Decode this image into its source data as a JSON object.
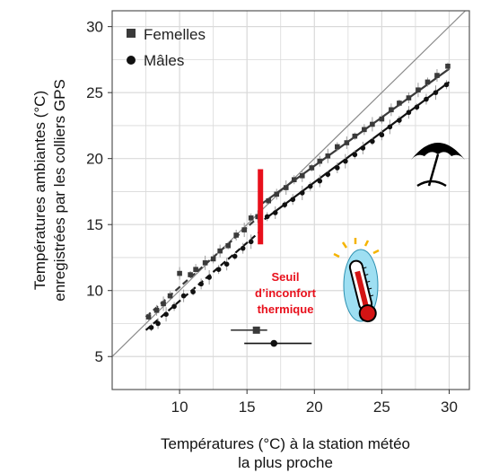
{
  "colors": {
    "femelles": "#3a3a3a",
    "males": "#111111",
    "threshold": "#e8101c",
    "identity": "#8a8a8a",
    "grid": "#d9d9d9",
    "panel_border": "#555555"
  },
  "icons": [
    "parasol-icon",
    "thermometer-icon"
  ],
  "chart_data": {
    "type": "scatter",
    "xlabel_lines": [
      "Températures (°C) à la station météo",
      "la plus proche"
    ],
    "ylabel_lines": [
      "Températures ambiantes (°C)",
      "enregistrées par les colliers GPS"
    ],
    "xlim": [
      5,
      31.5
    ],
    "ylim": [
      2.5,
      31.2
    ],
    "xticks": [
      10,
      15,
      20,
      25,
      30
    ],
    "yticks": [
      5,
      10,
      15,
      20,
      25,
      30
    ],
    "x_tick_labels": [
      "10",
      "15",
      "20",
      "25",
      "30"
    ],
    "y_tick_labels": [
      "5",
      "10",
      "15",
      "20",
      "25",
      "30"
    ],
    "grid": true,
    "legend_position": "top-left",
    "identity_line": true,
    "series": [
      {
        "name": "Femelles",
        "marker": "square",
        "fit_below_threshold": {
          "x": [
            7.5,
            16.0
          ],
          "y": [
            8.0,
            15.7
          ],
          "style": "dashed"
        },
        "fit_above_threshold": {
          "x": [
            16.0,
            30.0
          ],
          "y": [
            16.5,
            26.8
          ],
          "style": "solid"
        },
        "points": [
          {
            "x": 7.7,
            "y": 8.0
          },
          {
            "x": 8.3,
            "y": 8.5
          },
          {
            "x": 8.8,
            "y": 9.0
          },
          {
            "x": 9.3,
            "y": 9.6
          },
          {
            "x": 10.0,
            "y": 11.3
          },
          {
            "x": 10.8,
            "y": 11.2
          },
          {
            "x": 11.2,
            "y": 11.6
          },
          {
            "x": 11.9,
            "y": 12.1
          },
          {
            "x": 12.5,
            "y": 12.4
          },
          {
            "x": 13.0,
            "y": 13.0
          },
          {
            "x": 13.6,
            "y": 13.4
          },
          {
            "x": 14.2,
            "y": 14.2
          },
          {
            "x": 14.8,
            "y": 14.6
          },
          {
            "x": 15.3,
            "y": 15.5
          },
          {
            "x": 15.8,
            "y": 15.6
          },
          {
            "x": 16.6,
            "y": 16.8
          },
          {
            "x": 17.2,
            "y": 17.3
          },
          {
            "x": 17.9,
            "y": 17.8
          },
          {
            "x": 18.5,
            "y": 18.4
          },
          {
            "x": 19.1,
            "y": 18.7
          },
          {
            "x": 19.8,
            "y": 19.3
          },
          {
            "x": 20.4,
            "y": 19.8
          },
          {
            "x": 21.0,
            "y": 20.2
          },
          {
            "x": 21.7,
            "y": 20.9
          },
          {
            "x": 22.4,
            "y": 21.2
          },
          {
            "x": 23.0,
            "y": 21.7
          },
          {
            "x": 23.7,
            "y": 22.2
          },
          {
            "x": 24.3,
            "y": 22.6
          },
          {
            "x": 25.0,
            "y": 23.0
          },
          {
            "x": 25.7,
            "y": 23.7
          },
          {
            "x": 26.3,
            "y": 24.2
          },
          {
            "x": 27.0,
            "y": 24.6
          },
          {
            "x": 27.7,
            "y": 25.2
          },
          {
            "x": 28.4,
            "y": 25.8
          },
          {
            "x": 29.1,
            "y": 26.3
          },
          {
            "x": 29.9,
            "y": 27.0
          }
        ],
        "mean_point": {
          "x": 15.7,
          "y": 7.0,
          "x_error": [
            13.8,
            16.5
          ]
        }
      },
      {
        "name": "Mâles",
        "marker": "circle",
        "fit_below_threshold": {
          "x": [
            7.5,
            16.0
          ],
          "y": [
            7.0,
            14.5
          ],
          "style": "dashed"
        },
        "fit_above_threshold": {
          "x": [
            16.3,
            30.0
          ],
          "y": [
            15.4,
            25.8
          ],
          "style": "solid"
        },
        "points": [
          {
            "x": 7.9,
            "y": 7.2
          },
          {
            "x": 8.4,
            "y": 7.5
          },
          {
            "x": 9.0,
            "y": 8.2
          },
          {
            "x": 9.6,
            "y": 8.8
          },
          {
            "x": 10.3,
            "y": 9.6
          },
          {
            "x": 11.0,
            "y": 9.9
          },
          {
            "x": 11.6,
            "y": 10.5
          },
          {
            "x": 12.2,
            "y": 11.0
          },
          {
            "x": 12.9,
            "y": 11.6
          },
          {
            "x": 13.5,
            "y": 12.0
          },
          {
            "x": 14.1,
            "y": 12.6
          },
          {
            "x": 14.7,
            "y": 13.2
          },
          {
            "x": 15.3,
            "y": 13.7
          },
          {
            "x": 16.5,
            "y": 15.6
          },
          {
            "x": 17.1,
            "y": 15.9
          },
          {
            "x": 17.8,
            "y": 16.5
          },
          {
            "x": 18.4,
            "y": 16.9
          },
          {
            "x": 19.1,
            "y": 17.4
          },
          {
            "x": 19.7,
            "y": 17.9
          },
          {
            "x": 20.4,
            "y": 18.3
          },
          {
            "x": 21.0,
            "y": 18.8
          },
          {
            "x": 21.7,
            "y": 19.3
          },
          {
            "x": 22.3,
            "y": 19.8
          },
          {
            "x": 23.0,
            "y": 20.3
          },
          {
            "x": 23.6,
            "y": 20.8
          },
          {
            "x": 24.3,
            "y": 21.3
          },
          {
            "x": 25.0,
            "y": 21.8
          },
          {
            "x": 25.6,
            "y": 22.4
          },
          {
            "x": 26.3,
            "y": 22.9
          },
          {
            "x": 27.0,
            "y": 23.5
          },
          {
            "x": 27.6,
            "y": 23.9
          },
          {
            "x": 28.3,
            "y": 24.5
          },
          {
            "x": 29.0,
            "y": 25.0
          },
          {
            "x": 29.8,
            "y": 25.6
          }
        ],
        "mean_point": {
          "x": 17.0,
          "y": 6.0,
          "x_error": [
            14.8,
            19.8
          ]
        }
      }
    ],
    "threshold": {
      "x": 16.0,
      "y_range": [
        13.5,
        19.2
      ]
    },
    "annotation_lines": [
      "Seuil",
      "d’inconfort",
      "thermique"
    ]
  }
}
